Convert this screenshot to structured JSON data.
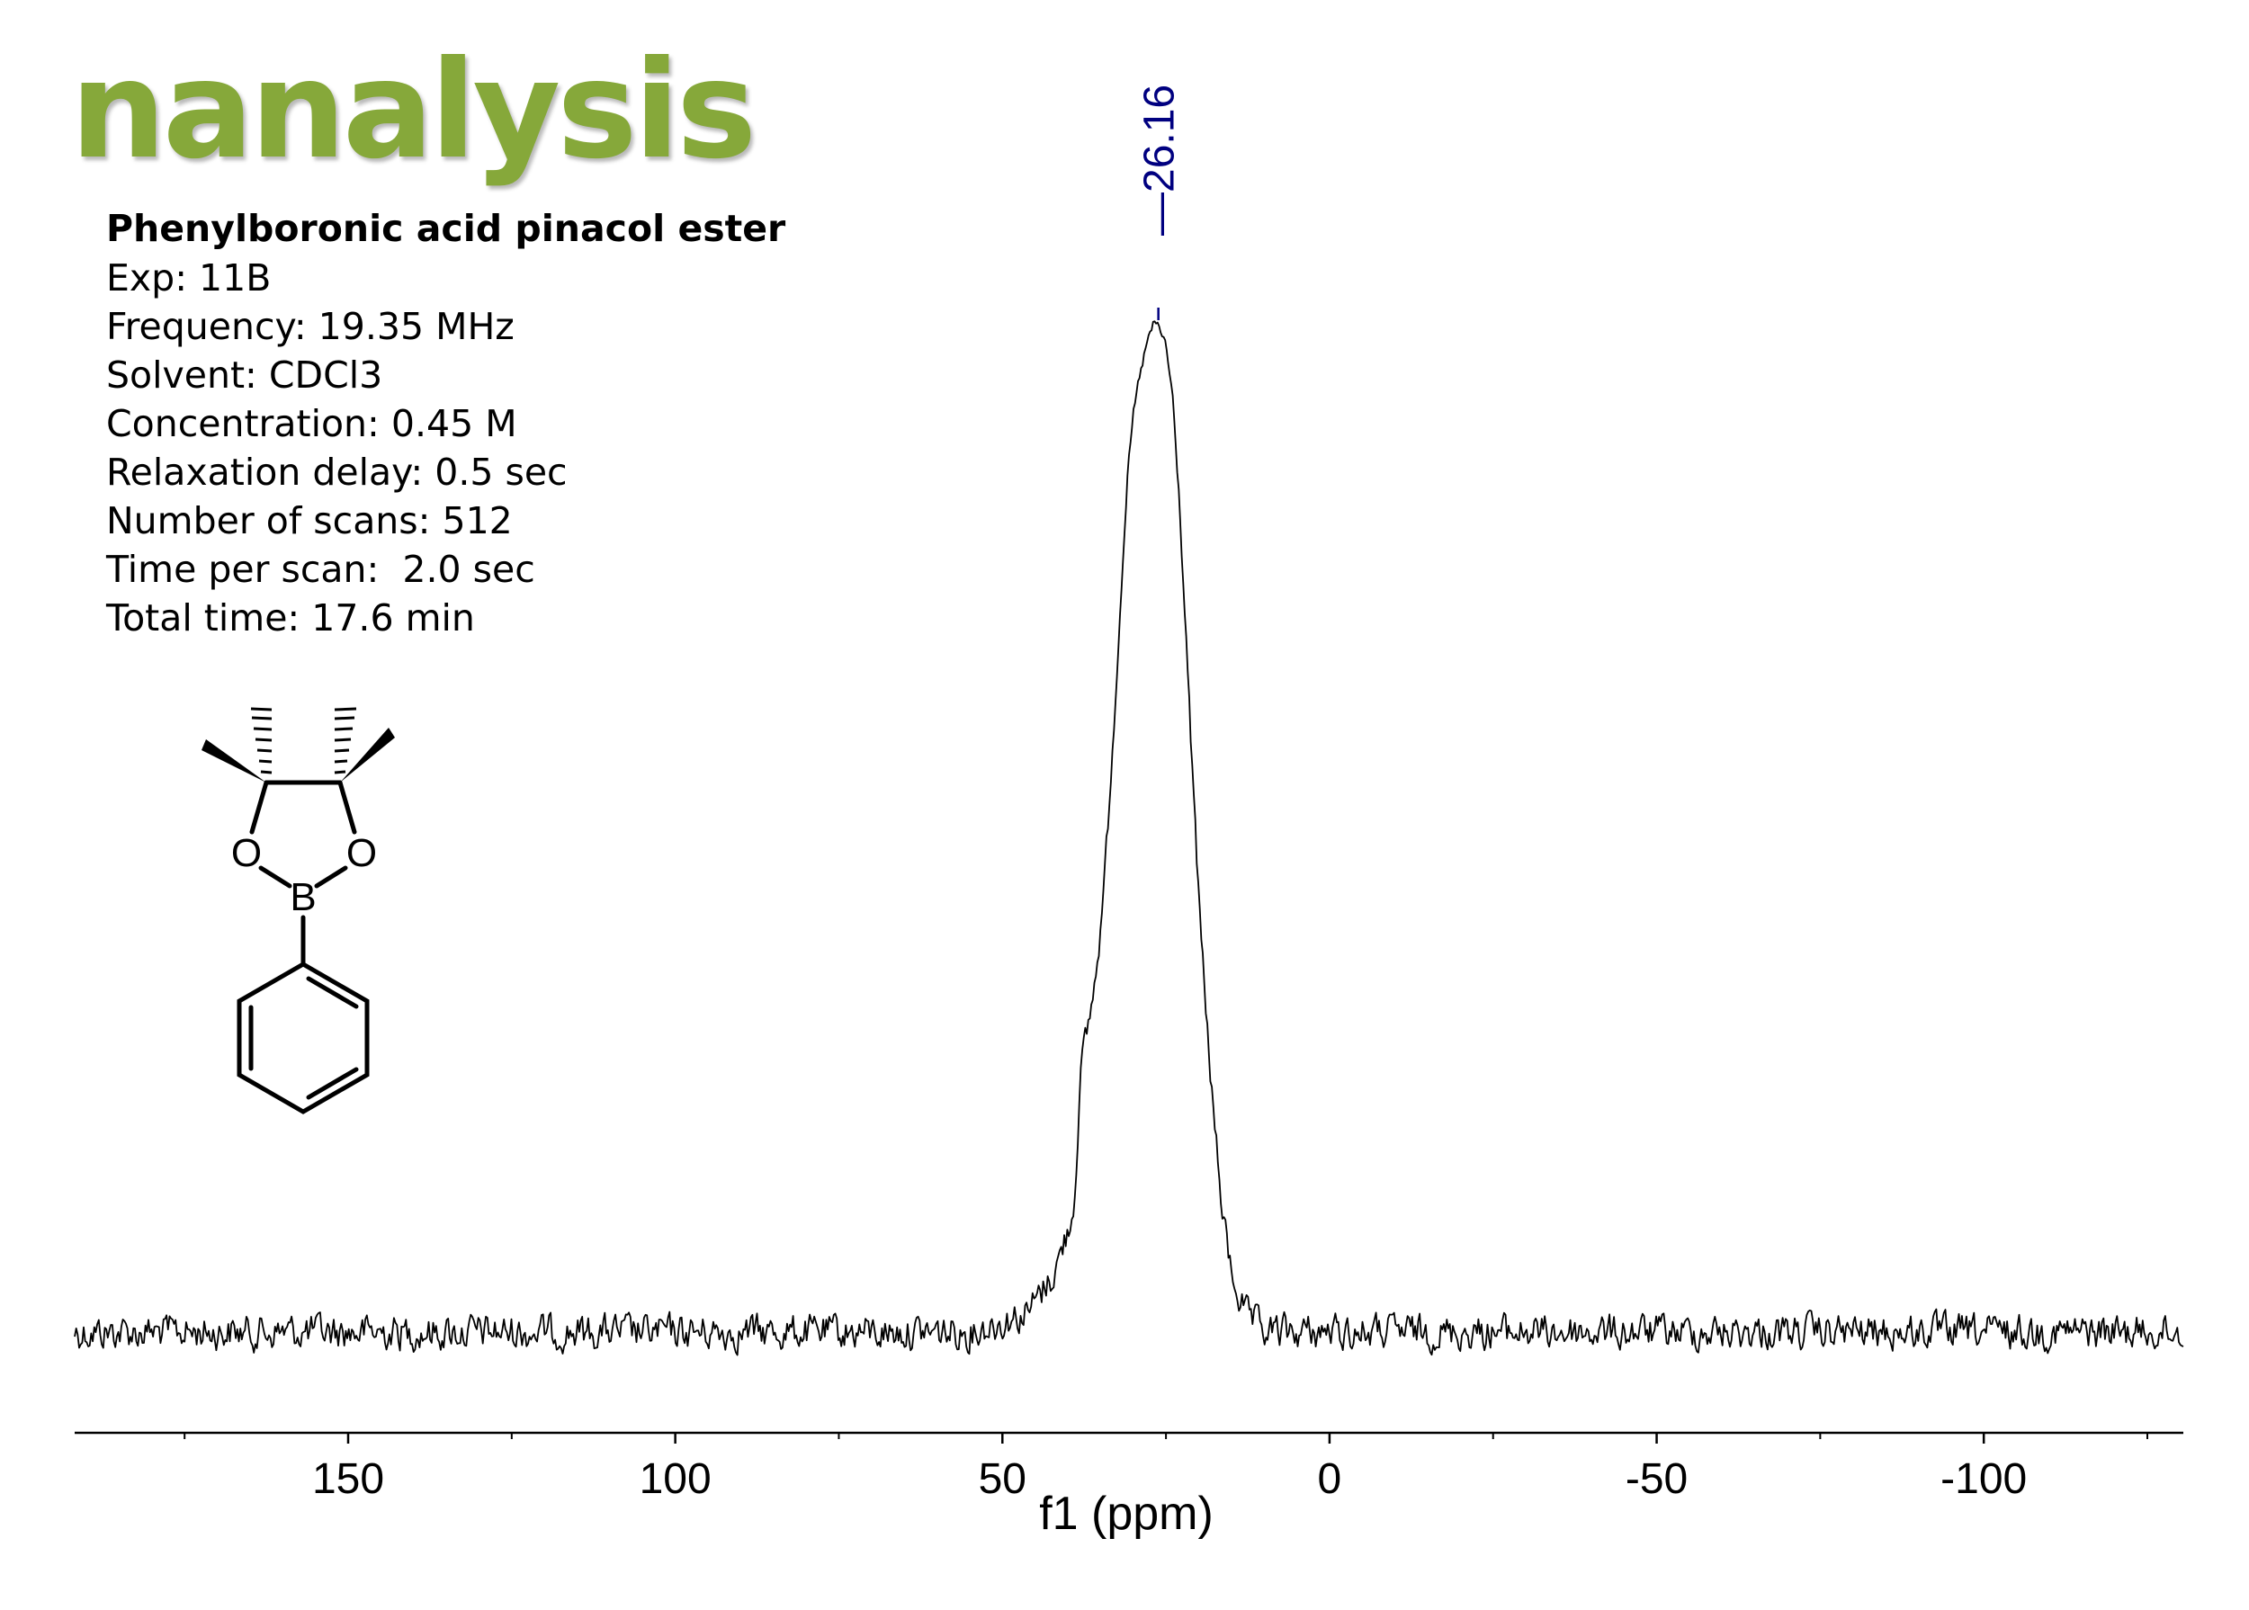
{
  "logo": {
    "text": "nanalysis",
    "color": "#86a83a"
  },
  "info": {
    "title": "Phenylboronic acid pinacol ester",
    "lines": [
      "Exp: 11B",
      "Frequency: 19.35 MHz",
      "Solvent: CDCl3",
      "Concentration: 0.45 M",
      "Relaxation delay: 0.5 sec",
      "Number of scans: 512",
      "Time per scan:  2.0 sec",
      "Total time: 17.6 min"
    ]
  },
  "molecule": {
    "atoms": {
      "oxygen_left": "O",
      "oxygen_right": "O",
      "boron": "B"
    }
  },
  "chart_data": {
    "type": "line",
    "xlabel": "f1 (ppm)",
    "xlim": [
      191.8,
      -130.5
    ],
    "x_reversed": true,
    "tick_labels": [
      "150",
      "100",
      "50",
      "0",
      "-50",
      "-100"
    ],
    "tick_values": [
      150,
      100,
      50,
      0,
      -50,
      -100
    ],
    "minor_tick_values": [
      175,
      125,
      75,
      25,
      -25,
      -75,
      -125
    ],
    "peak": {
      "label": "26.16",
      "ppm": 26.16,
      "color": "#000080"
    },
    "spectrum": {
      "description_units": "relative intensity (baseline 0, peak max 1)",
      "points": [
        [
          55,
          0.0
        ],
        [
          50,
          0.01
        ],
        [
          46,
          0.02
        ],
        [
          44,
          0.04
        ],
        [
          42,
          0.06
        ],
        [
          41,
          0.08
        ],
        [
          40,
          0.1
        ],
        [
          39,
          0.13
        ],
        [
          38.5,
          0.2
        ],
        [
          38,
          0.26
        ],
        [
          37,
          0.3
        ],
        [
          36,
          0.34
        ],
        [
          35,
          0.4
        ],
        [
          34,
          0.49
        ],
        [
          33,
          0.6
        ],
        [
          32,
          0.72
        ],
        [
          31,
          0.84
        ],
        [
          30,
          0.91
        ],
        [
          29,
          0.95
        ],
        [
          28,
          0.98
        ],
        [
          27,
          1.0
        ],
        [
          26.16,
          1.0
        ],
        [
          25,
          0.98
        ],
        [
          24,
          0.93
        ],
        [
          23,
          0.83
        ],
        [
          22,
          0.7
        ],
        [
          21,
          0.56
        ],
        [
          20,
          0.43
        ],
        [
          19,
          0.33
        ],
        [
          18,
          0.24
        ],
        [
          17,
          0.16
        ],
        [
          16,
          0.1
        ],
        [
          15,
          0.06
        ],
        [
          14,
          0.04
        ],
        [
          13,
          0.02
        ],
        [
          12,
          0.01
        ],
        [
          10,
          0.0
        ]
      ]
    }
  }
}
